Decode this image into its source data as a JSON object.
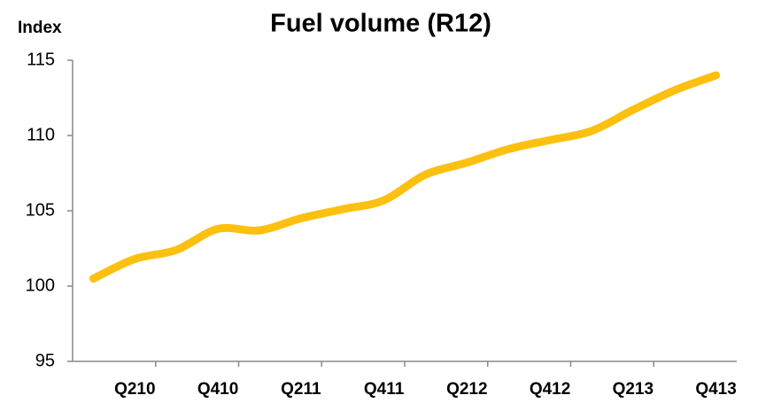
{
  "chart_data": {
    "type": "line",
    "title": "Fuel volume (R12)",
    "y_label": "Index",
    "categories": [
      null,
      "Q210",
      null,
      "Q410",
      null,
      "Q211",
      null,
      "Q411",
      null,
      "Q212",
      null,
      "Q412",
      null,
      "Q213",
      null,
      "Q413"
    ],
    "series": [
      {
        "name": "Fuel volume",
        "color": "#fcc010",
        "values": [
          100.5,
          101.8,
          102.4,
          103.8,
          103.7,
          104.5,
          105.1,
          105.7,
          107.4,
          108.2,
          109.1,
          109.7,
          110.3,
          111.7,
          113.0,
          114.0
        ]
      }
    ],
    "ylim": [
      95,
      115
    ],
    "yticks": [
      95,
      100,
      105,
      110,
      115
    ],
    "grid": false
  }
}
